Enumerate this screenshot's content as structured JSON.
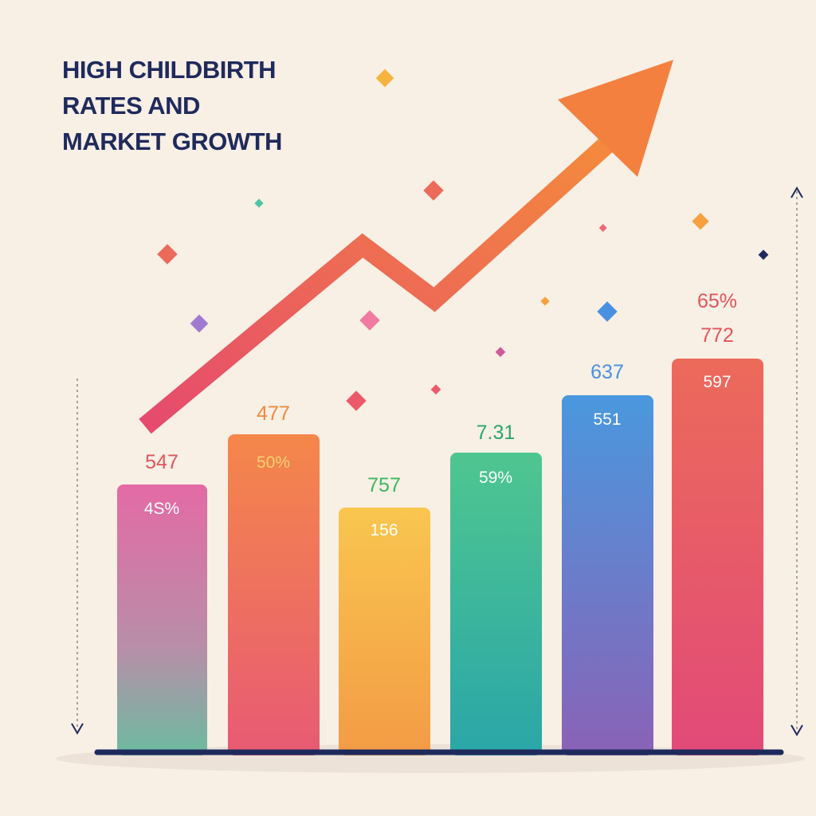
{
  "title_lines": [
    "HIGH CHILDBIRTH",
    "RATES AND",
    "MARKET GROWTH"
  ],
  "bars": [
    {
      "top_label": "547",
      "inner_label": "4S%"
    },
    {
      "top_label": "477",
      "inner_label": "50%"
    },
    {
      "top_label": "757",
      "inner_label": "156"
    },
    {
      "top_label": "7.31",
      "inner_label": "59%"
    },
    {
      "top_label": "637",
      "inner_label": "551"
    },
    {
      "top_label": "772",
      "inner_label": "597",
      "extra_label": "65%"
    }
  ]
}
